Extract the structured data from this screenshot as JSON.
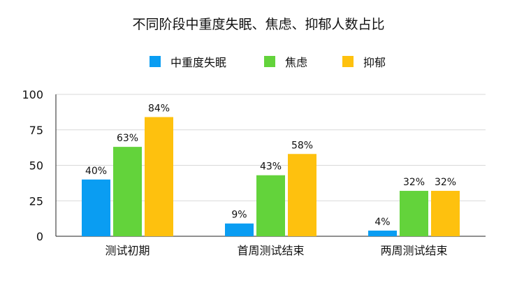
{
  "chart_data": {
    "type": "bar",
    "title": "不同阶段中重度失眠、焦虑、抑郁人数占比",
    "xlabel": "",
    "ylabel": "",
    "categories": [
      "测试初期",
      "首周测试结束",
      "两周测试结束"
    ],
    "series": [
      {
        "name": "中重度失眠",
        "values": [
          40,
          9,
          4
        ],
        "labels": [
          "40%",
          "9%",
          "4%"
        ],
        "color": "#0A9DF2"
      },
      {
        "name": "焦虑",
        "values": [
          63,
          43,
          32
        ],
        "labels": [
          "63%",
          "43%",
          "32%"
        ],
        "color": "#63D33B"
      },
      {
        "name": "抑郁",
        "values": [
          84,
          58,
          32
        ],
        "labels": [
          "84%",
          "58%",
          "32%"
        ],
        "color": "#FEC10E"
      }
    ],
    "ylim": [
      0,
      100
    ],
    "yticks": [
      "0",
      "25",
      "50",
      "75",
      "100"
    ],
    "grid": true,
    "legend_position": "top-center",
    "gridline_color": "#D9D9D9"
  }
}
